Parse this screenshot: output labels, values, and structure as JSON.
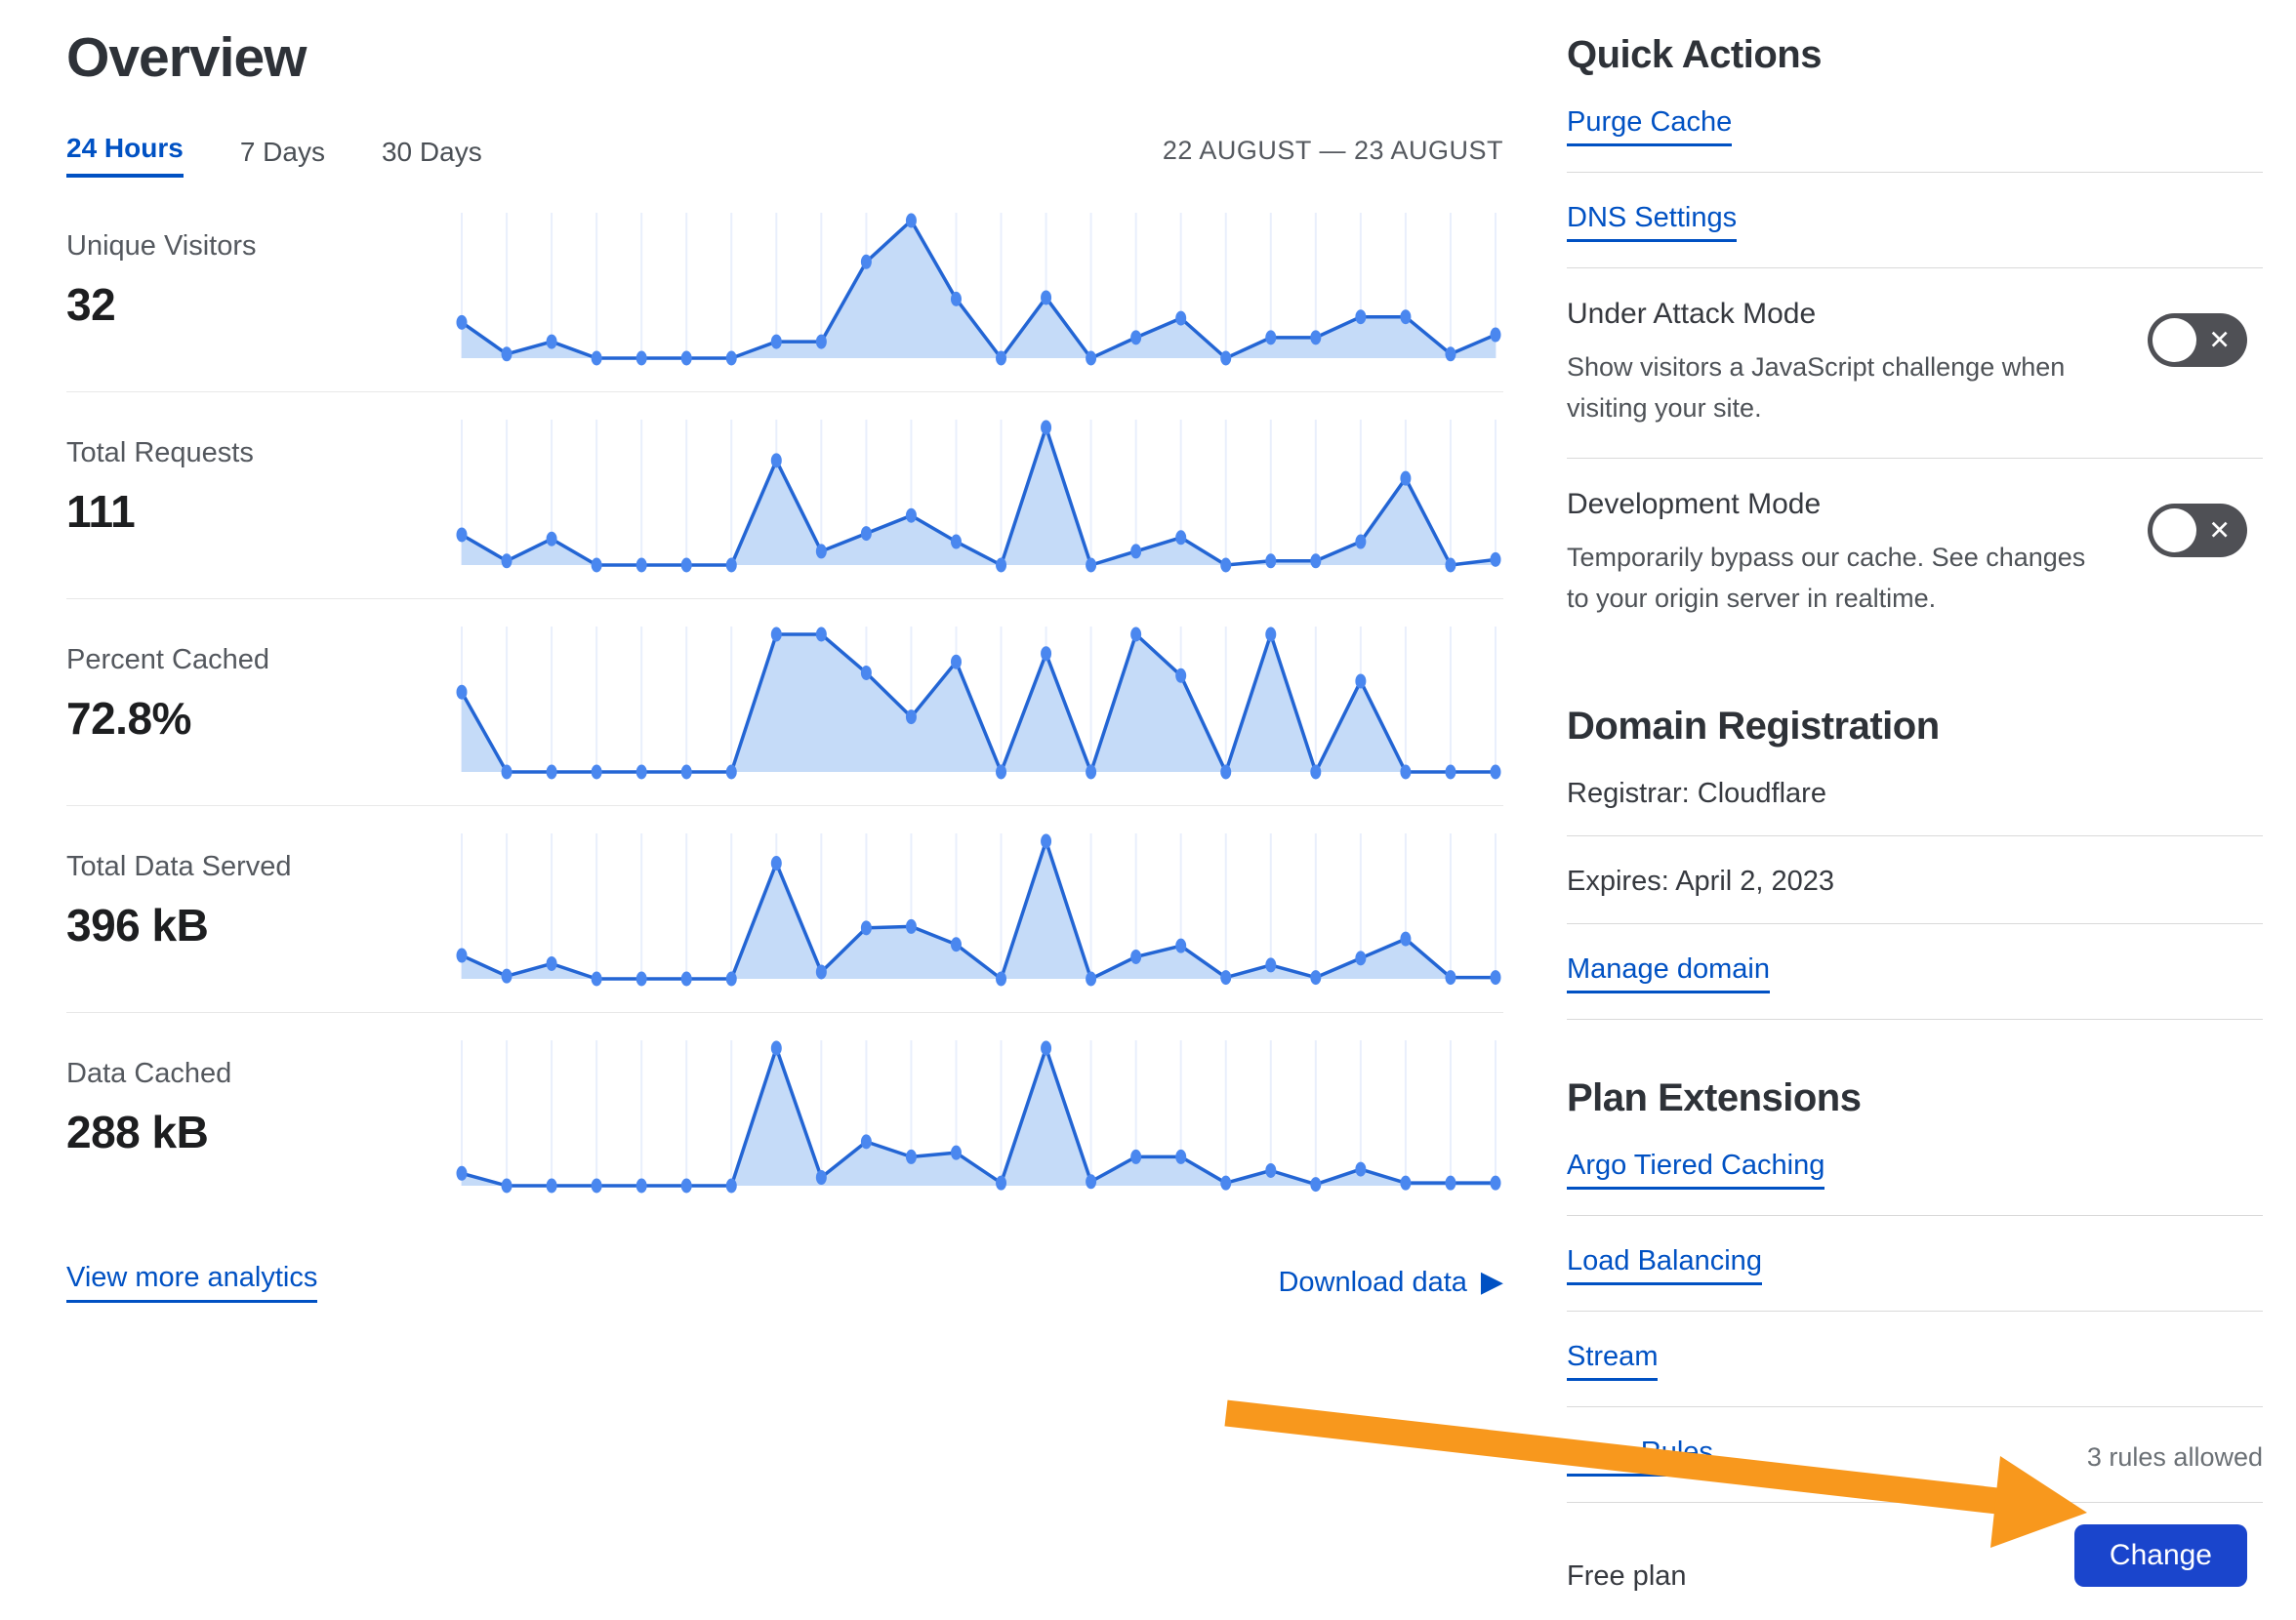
{
  "page_title": "Overview",
  "tabs": [
    {
      "label": "24 Hours",
      "active": true
    },
    {
      "label": "7 Days",
      "active": false
    },
    {
      "label": "30 Days",
      "active": false
    }
  ],
  "header": {
    "date_range": "22 AUGUST — 23 AUGUST"
  },
  "metrics": [
    {
      "label": "Unique Visitors",
      "value": "32"
    },
    {
      "label": "Total Requests",
      "value": "111"
    },
    {
      "label": "Percent Cached",
      "value": "72.8%"
    },
    {
      "label": "Total Data Served",
      "value": "396 kB"
    },
    {
      "label": "Data Cached",
      "value": "288 kB"
    }
  ],
  "footer_links": {
    "view_more": "View more analytics",
    "download": "Download data"
  },
  "icons": {
    "play_glyph": "▶",
    "toggle_off_glyph": "✕"
  },
  "sidebar": {
    "quick_actions_title": "Quick Actions",
    "purge_cache": "Purge Cache",
    "dns_settings": "DNS Settings",
    "under_attack": {
      "title": "Under Attack Mode",
      "desc": "Show visitors a JavaScript challenge when visiting your site.",
      "state": "off"
    },
    "development": {
      "title": "Development Mode",
      "desc": "Temporarily bypass our cache. See changes to your origin server in realtime.",
      "state": "off"
    },
    "domain_title": "Domain Registration",
    "registrar": "Registrar: Cloudflare",
    "expires": "Expires: April 2, 2023",
    "manage_domain": "Manage domain",
    "plan_title": "Plan Extensions",
    "extensions": [
      {
        "label": "Argo Tiered Caching"
      },
      {
        "label": "Load Balancing"
      },
      {
        "label": "Stream"
      },
      {
        "label": "Page Rules"
      }
    ],
    "page_rules_note": "3 rules allowed",
    "free_plan": "Free plan",
    "change_button": "Change"
  },
  "colors": {
    "link_blue": "#0051c3",
    "button_blue": "#1a45cc",
    "chart_line": "#2365d4",
    "chart_dot": "#4a87ef",
    "chart_fill": "#c5dbf8",
    "chart_grid": "#e9effc",
    "toggle_gray": "#4f5055",
    "arrow_orange": "#f8981d"
  },
  "chart_data": [
    {
      "type": "area",
      "name": "Unique Visitors",
      "display_value": "32",
      "x_hours": [
        0,
        1,
        2,
        3,
        4,
        5,
        6,
        7,
        8,
        9,
        10,
        11,
        12,
        13,
        14,
        15,
        16,
        17,
        18,
        19,
        20,
        21,
        22,
        23
      ],
      "values": [
        2.6,
        0.3,
        1.2,
        0,
        0,
        0,
        0,
        1.2,
        1.2,
        7,
        10,
        4.3,
        0,
        4.4,
        0,
        1.5,
        2.9,
        0,
        1.5,
        1.5,
        3,
        3,
        0.3,
        1.7
      ],
      "ymax": 10,
      "units": "relative (unlabeled sparkline, estimated 0-10 scale)",
      "grid": "vertical-only",
      "axes_hidden": true
    },
    {
      "type": "area",
      "name": "Total Requests",
      "display_value": "111",
      "x_hours": [
        0,
        1,
        2,
        3,
        4,
        5,
        6,
        7,
        8,
        9,
        10,
        11,
        12,
        13,
        14,
        15,
        16,
        17,
        18,
        19,
        20,
        21,
        22,
        23
      ],
      "values": [
        2.2,
        0.3,
        1.9,
        0,
        0,
        0,
        0,
        7.6,
        1,
        2.3,
        3.6,
        1.7,
        0,
        10,
        0,
        1,
        2,
        0,
        0.3,
        0.3,
        1.7,
        6.3,
        0,
        0.4
      ],
      "ymax": 10,
      "units": "relative (unlabeled sparkline, estimated 0-10 scale)",
      "grid": "vertical-only",
      "axes_hidden": true
    },
    {
      "type": "area",
      "name": "Percent Cached",
      "display_value": "72.8%",
      "x_hours": [
        0,
        1,
        2,
        3,
        4,
        5,
        6,
        7,
        8,
        9,
        10,
        11,
        12,
        13,
        14,
        15,
        16,
        17,
        18,
        19,
        20,
        21,
        22,
        23
      ],
      "values": [
        5.8,
        0,
        0,
        0,
        0,
        0,
        0,
        10,
        10,
        7.2,
        4,
        8,
        0,
        8.6,
        0,
        10,
        7,
        0,
        10,
        0,
        6.6,
        0,
        0,
        0
      ],
      "ymax": 10,
      "units": "relative (unlabeled sparkline, estimated 0-10 scale)",
      "grid": "vertical-only",
      "axes_hidden": true
    },
    {
      "type": "area",
      "name": "Total Data Served",
      "display_value": "396 kB",
      "x_hours": [
        0,
        1,
        2,
        3,
        4,
        5,
        6,
        7,
        8,
        9,
        10,
        11,
        12,
        13,
        14,
        15,
        16,
        17,
        18,
        19,
        20,
        21,
        22,
        23
      ],
      "values": [
        1.7,
        0.2,
        1.1,
        0,
        0,
        0,
        0,
        8.4,
        0.5,
        3.7,
        3.8,
        2.5,
        0,
        10,
        0,
        1.6,
        2.4,
        0.1,
        1,
        0.1,
        1.5,
        2.9,
        0.1,
        0.1
      ],
      "ymax": 10,
      "units": "relative (unlabeled sparkline, estimated 0-10 scale)",
      "grid": "vertical-only",
      "axes_hidden": true
    },
    {
      "type": "area",
      "name": "Data Cached",
      "display_value": "288 kB",
      "x_hours": [
        0,
        1,
        2,
        3,
        4,
        5,
        6,
        7,
        8,
        9,
        10,
        11,
        12,
        13,
        14,
        15,
        16,
        17,
        18,
        19,
        20,
        21,
        22,
        23
      ],
      "values": [
        0.9,
        0,
        0,
        0,
        0,
        0,
        0,
        10,
        0.6,
        3.2,
        2.1,
        2.4,
        0.2,
        10,
        0.3,
        2.1,
        2.1,
        0.2,
        1.1,
        0.1,
        1.2,
        0.2,
        0.2,
        0.2
      ],
      "ymax": 10,
      "units": "relative (unlabeled sparkline, estimated 0-10 scale)",
      "grid": "vertical-only",
      "axes_hidden": true
    }
  ]
}
